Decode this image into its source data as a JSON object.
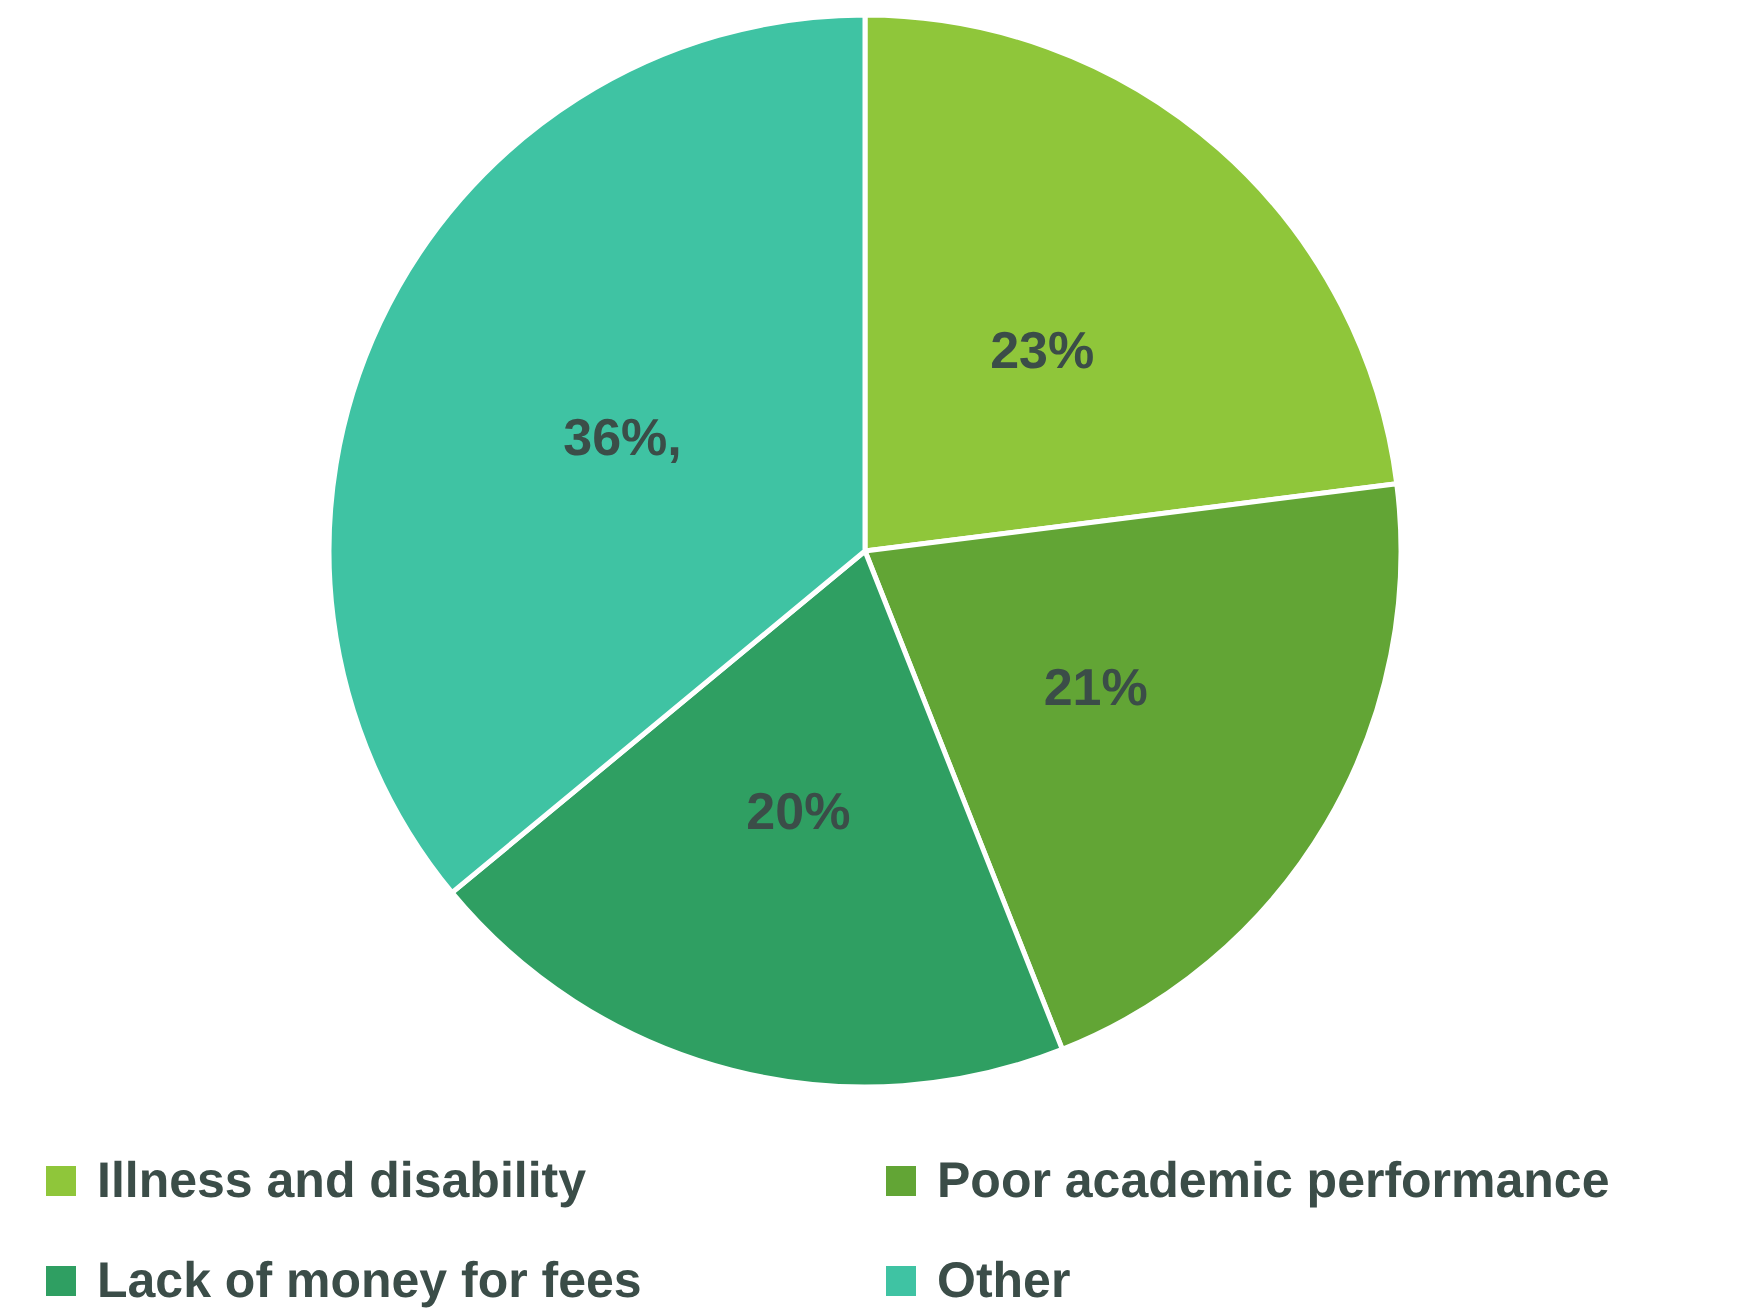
{
  "chart_data": {
    "type": "pie",
    "categories": [
      "Illness and disability",
      "Poor academic performance",
      "Lack of money for fees",
      "Other"
    ],
    "values": [
      23,
      21,
      20,
      36
    ],
    "colors": [
      "#8fc63a",
      "#62a535",
      "#2f9f62",
      "#3fc3a3"
    ],
    "value_labels": [
      "23%",
      "21%",
      "20%",
      "36%,"
    ],
    "legend": "bottom"
  }
}
